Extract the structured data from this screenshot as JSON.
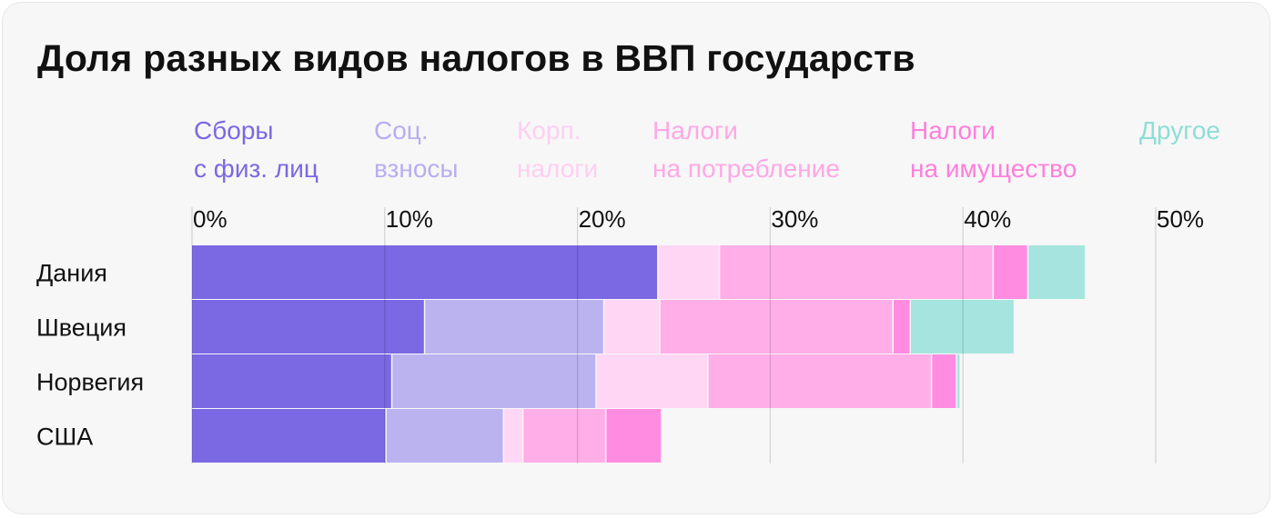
{
  "title": "Доля разных видов налогов в ВВП государств",
  "chart_data": {
    "type": "bar",
    "orientation": "horizontal",
    "stacked": true,
    "title": "Доля разных видов налогов в ВВП государств",
    "categories": [
      "Дания",
      "Швеция",
      "Норвегия",
      "США"
    ],
    "x_ticks": [
      "0%",
      "10%",
      "20%",
      "30%",
      "40%",
      "50%"
    ],
    "xlim": [
      0,
      50
    ],
    "grid": true,
    "legend_position": "top",
    "series": [
      {
        "name": "Сборы с физ. лиц",
        "label_lines": [
          "Сборы",
          "с физ. лиц"
        ],
        "color": "#7b68e3",
        "legend_color": "#7b68e3",
        "values": [
          24.2,
          12.1,
          10.4,
          10.1
        ]
      },
      {
        "name": "Соц. взносы",
        "label_lines": [
          "Соц.",
          "взносы"
        ],
        "color": "#bbb3f0",
        "legend_color": "#b8aef0",
        "values": [
          0.0,
          9.3,
          10.6,
          6.1
        ]
      },
      {
        "name": "Корп. налоги",
        "label_lines": [
          "Корп.",
          "налоги"
        ],
        "color": "#ffd6f4",
        "legend_color": "#ffcff1",
        "values": [
          3.2,
          2.9,
          5.8,
          1.0
        ]
      },
      {
        "name": "Налоги на потребление",
        "label_lines": [
          "Налоги",
          "на потребление"
        ],
        "color": "#ffaee7",
        "legend_color": "#ffa8e4",
        "values": [
          14.2,
          12.1,
          11.6,
          4.3
        ]
      },
      {
        "name": "Налоги на имущество",
        "label_lines": [
          "Налоги",
          "на имущество"
        ],
        "color": "#ff8ce1",
        "legend_color": "#ff7fdc",
        "values": [
          1.8,
          0.9,
          1.3,
          2.9
        ]
      },
      {
        "name": "Другое",
        "label_lines": [
          "Другое"
        ],
        "color": "#a6e5df",
        "legend_color": "#8fded6",
        "values": [
          3.0,
          5.4,
          0.2,
          0.0
        ]
      }
    ]
  }
}
